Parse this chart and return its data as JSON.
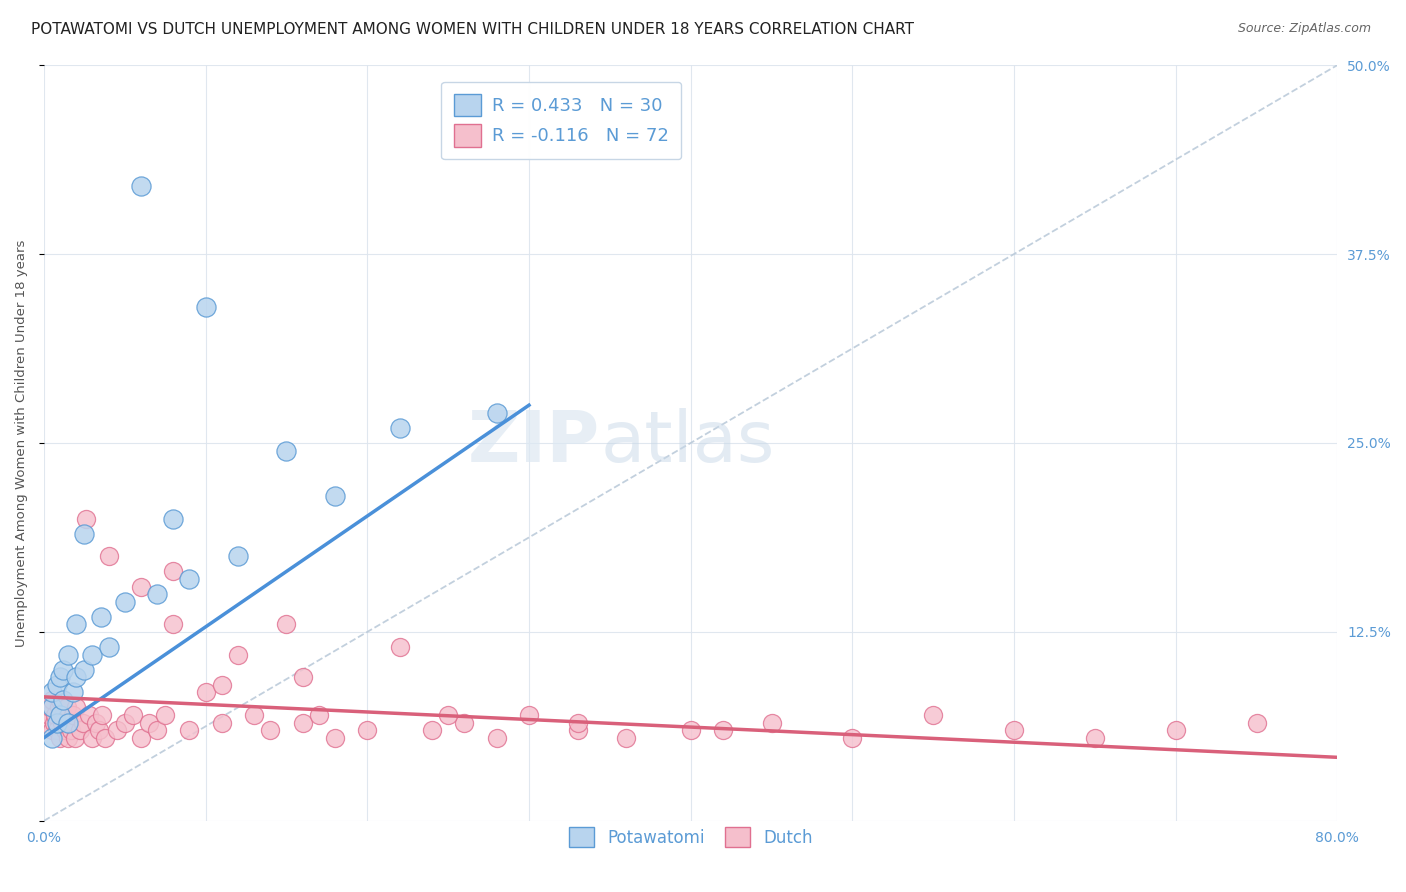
{
  "title": "POTAWATOMI VS DUTCH UNEMPLOYMENT AMONG WOMEN WITH CHILDREN UNDER 18 YEARS CORRELATION CHART",
  "source": "Source: ZipAtlas.com",
  "ylabel": "Unemployment Among Women with Children Under 18 years",
  "xlim": [
    0,
    0.8
  ],
  "ylim": [
    0,
    0.5
  ],
  "potawatomi_fill": "#b8d4ee",
  "potawatomi_edge": "#5b9bd5",
  "dutch_fill": "#f5bfcc",
  "dutch_edge": "#e07090",
  "potawatomi_line_color": "#4a90d9",
  "dutch_line_color": "#d9607a",
  "diagonal_color": "#b8c8d8",
  "tick_color": "#5b9bd5",
  "background_color": "#ffffff",
  "grid_color": "#dde5ee",
  "title_fontsize": 11,
  "axis_label_fontsize": 9.5,
  "tick_fontsize": 10,
  "legend_fontsize": 13,
  "watermark": "ZIPatlas",
  "potawatomi_x": [
    0.005,
    0.005,
    0.005,
    0.008,
    0.008,
    0.01,
    0.01,
    0.012,
    0.012,
    0.015,
    0.015,
    0.018,
    0.02,
    0.02,
    0.025,
    0.025,
    0.03,
    0.035,
    0.04,
    0.05,
    0.06,
    0.07,
    0.08,
    0.09,
    0.1,
    0.12,
    0.15,
    0.18,
    0.22,
    0.28
  ],
  "potawatomi_y": [
    0.055,
    0.075,
    0.085,
    0.065,
    0.09,
    0.07,
    0.095,
    0.08,
    0.1,
    0.065,
    0.11,
    0.085,
    0.095,
    0.13,
    0.1,
    0.19,
    0.11,
    0.135,
    0.115,
    0.145,
    0.42,
    0.15,
    0.2,
    0.16,
    0.34,
    0.175,
    0.245,
    0.215,
    0.26,
    0.27
  ],
  "dutch_x": [
    0.002,
    0.003,
    0.004,
    0.005,
    0.005,
    0.006,
    0.007,
    0.008,
    0.009,
    0.01,
    0.01,
    0.011,
    0.012,
    0.013,
    0.014,
    0.015,
    0.016,
    0.017,
    0.018,
    0.019,
    0.02,
    0.022,
    0.024,
    0.026,
    0.028,
    0.03,
    0.032,
    0.034,
    0.036,
    0.038,
    0.04,
    0.045,
    0.05,
    0.055,
    0.06,
    0.065,
    0.07,
    0.075,
    0.08,
    0.09,
    0.1,
    0.11,
    0.12,
    0.13,
    0.14,
    0.15,
    0.16,
    0.17,
    0.18,
    0.2,
    0.22,
    0.24,
    0.26,
    0.28,
    0.3,
    0.33,
    0.36,
    0.4,
    0.45,
    0.5,
    0.55,
    0.6,
    0.65,
    0.7,
    0.75,
    0.33,
    0.42,
    0.16,
    0.25,
    0.06,
    0.08,
    0.11
  ],
  "dutch_y": [
    0.065,
    0.07,
    0.075,
    0.06,
    0.08,
    0.065,
    0.07,
    0.06,
    0.075,
    0.055,
    0.08,
    0.065,
    0.07,
    0.06,
    0.075,
    0.055,
    0.065,
    0.06,
    0.07,
    0.055,
    0.075,
    0.06,
    0.065,
    0.2,
    0.07,
    0.055,
    0.065,
    0.06,
    0.07,
    0.055,
    0.175,
    0.06,
    0.065,
    0.07,
    0.055,
    0.065,
    0.06,
    0.07,
    0.13,
    0.06,
    0.085,
    0.065,
    0.11,
    0.07,
    0.06,
    0.13,
    0.065,
    0.07,
    0.055,
    0.06,
    0.115,
    0.06,
    0.065,
    0.055,
    0.07,
    0.06,
    0.055,
    0.06,
    0.065,
    0.055,
    0.07,
    0.06,
    0.055,
    0.06,
    0.065,
    0.065,
    0.06,
    0.095,
    0.07,
    0.155,
    0.165,
    0.09
  ],
  "pot_trend_x": [
    0.0,
    0.3
  ],
  "pot_trend_y": [
    0.055,
    0.275
  ],
  "dutch_trend_x": [
    0.0,
    0.8
  ],
  "dutch_trend_y": [
    0.082,
    0.042
  ]
}
